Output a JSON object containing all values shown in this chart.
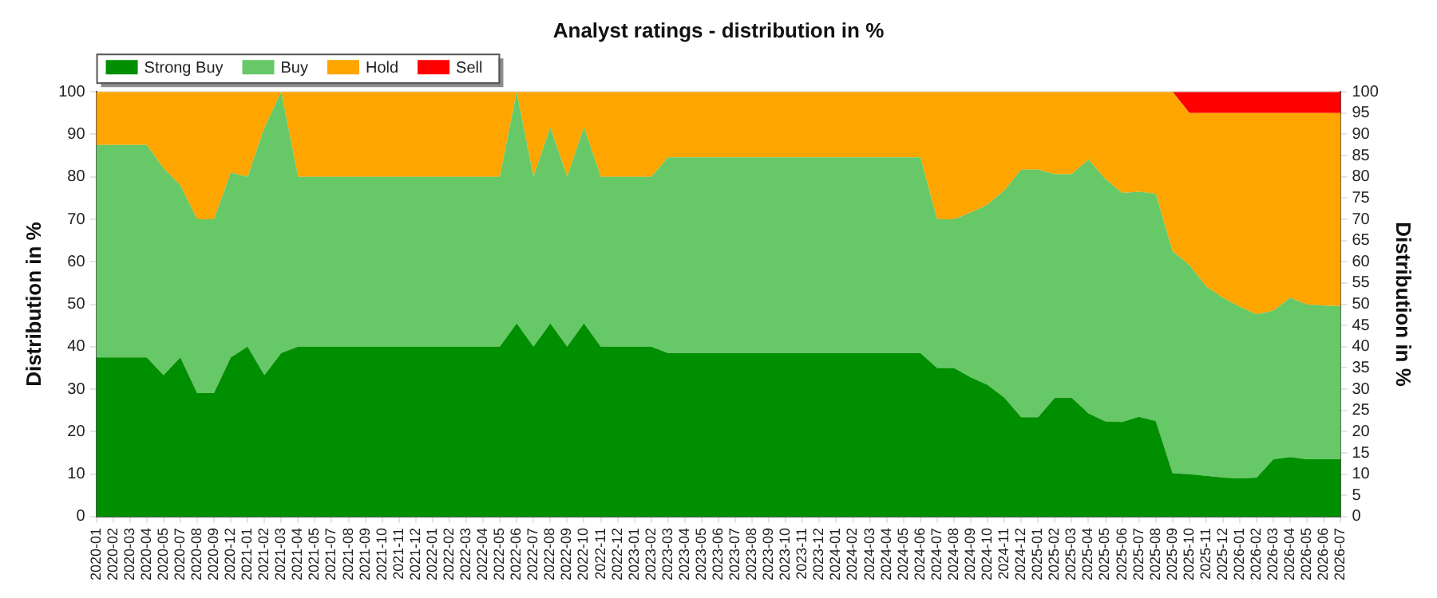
{
  "chart_data": {
    "type": "area",
    "title": "Analyst ratings - distribution in %",
    "ylabel": "Distribution in %",
    "y2label": "Distribution in %",
    "categories": [
      "2020-01",
      "2020-02",
      "2020-03",
      "2020-04",
      "2020-05",
      "2020-07",
      "2020-08",
      "2020-09",
      "2020-12",
      "2021-01",
      "2021-02",
      "2021-03",
      "2021-04",
      "2021-05",
      "2021-07",
      "2021-08",
      "2021-09",
      "2021-10",
      "2021-11",
      "2021-12",
      "2022-01",
      "2022-02",
      "2022-03",
      "2022-04",
      "2022-05",
      "2022-06",
      "2022-07",
      "2022-08",
      "2022-09",
      "2022-10",
      "2022-11",
      "2022-12",
      "2023-01",
      "2023-02",
      "2023-03",
      "2023-04",
      "2023-05",
      "2023-06",
      "2023-07",
      "2023-08",
      "2023-09",
      "2023-10",
      "2023-11",
      "2023-12",
      "2024-01",
      "2024-02",
      "2024-03",
      "2024-04",
      "2024-05",
      "2024-06",
      "2024-07",
      "2024-08",
      "2024-09",
      "2024-10",
      "2024-11",
      "2024-12",
      "2025-01",
      "2025-02",
      "2025-03",
      "2025-04",
      "2025-05",
      "2025-06",
      "2025-07",
      "2025-08",
      "2025-09",
      "2025-10",
      "2025-11",
      "2025-12",
      "2026-01",
      "2026-02",
      "2026-03",
      "2026-04",
      "2026-05",
      "2026-06",
      "2026-07"
    ],
    "stacked": true,
    "series": [
      {
        "name": "Strong Buy",
        "color": "#008f00",
        "values": [
          37.5,
          37.5,
          37.5,
          37.5,
          33.3,
          37.5,
          29.1,
          29.1,
          37.5,
          40,
          33.3,
          38.5,
          40,
          40,
          40,
          40,
          40,
          40,
          40,
          40,
          40,
          40,
          40,
          40,
          40,
          45.5,
          40,
          45.5,
          40,
          45.5,
          40,
          40,
          40,
          40,
          38.5,
          38.5,
          38.5,
          38.5,
          38.5,
          38.5,
          38.5,
          38.5,
          38.5,
          38.5,
          38.5,
          38.5,
          38.5,
          38.5,
          38.5,
          38.5,
          35,
          35,
          32.8,
          31,
          28,
          23.4,
          23.4,
          28,
          28,
          24.3,
          22.4,
          22.3,
          23.5,
          22.5,
          10.2,
          10,
          9.6,
          9.2,
          9,
          9.2,
          13.5,
          14,
          13.5,
          13.5,
          13.5
        ]
      },
      {
        "name": "Buy",
        "color": "#66c866",
        "values": [
          50,
          50,
          50,
          50,
          48.7,
          40.5,
          40.9,
          40.9,
          43.5,
          40,
          58.3,
          61.5,
          40,
          40,
          40,
          40,
          40,
          40,
          40,
          40,
          40,
          40,
          40,
          40,
          40,
          54.5,
          40,
          46.2,
          40,
          46.2,
          40,
          40,
          40,
          40,
          46.1,
          46.1,
          46.1,
          46.1,
          46.1,
          46.1,
          46.1,
          46.1,
          46.1,
          46.1,
          46.1,
          46.1,
          46.1,
          46.1,
          46.1,
          46.1,
          35,
          35,
          38.8,
          42.5,
          48.8,
          58.3,
          58.3,
          52.6,
          52.6,
          59.8,
          57.1,
          53.9,
          53,
          53.5,
          52.3,
          49.2,
          44.6,
          42.3,
          40.4,
          38.4,
          35,
          37.5,
          36.4,
          36.2,
          36.1
        ]
      },
      {
        "name": "Hold",
        "color": "#ffa500",
        "values": [
          12.5,
          12.5,
          12.5,
          12.5,
          18,
          22,
          30,
          30,
          19,
          20,
          8.4,
          0,
          20,
          20,
          20,
          20,
          20,
          20,
          20,
          20,
          20,
          20,
          20,
          20,
          20,
          0,
          20,
          8.3,
          20,
          8.3,
          20,
          20,
          20,
          20,
          15.4,
          15.4,
          15.4,
          15.4,
          15.4,
          15.4,
          15.4,
          15.4,
          15.4,
          15.4,
          15.4,
          15.4,
          15.4,
          15.4,
          15.4,
          15.4,
          30,
          30,
          28.4,
          26.5,
          23.2,
          18.3,
          18.3,
          19.4,
          19.4,
          15.9,
          20.5,
          23.8,
          23.5,
          24,
          37.5,
          35.8,
          40.8,
          43.5,
          45.6,
          47.4,
          46.5,
          43.5,
          45.1,
          45.3,
          45.4
        ]
      },
      {
        "name": "Sell",
        "color": "#ff0000",
        "values": [
          0,
          0,
          0,
          0,
          0,
          0,
          0,
          0,
          0,
          0,
          0,
          0,
          0,
          0,
          0,
          0,
          0,
          0,
          0,
          0,
          0,
          0,
          0,
          0,
          0,
          0,
          0,
          0,
          0,
          0,
          0,
          0,
          0,
          0,
          0,
          0,
          0,
          0,
          0,
          0,
          0,
          0,
          0,
          0,
          0,
          0,
          0,
          0,
          0,
          0,
          0,
          0,
          0,
          0,
          0,
          0,
          0,
          0,
          0,
          0,
          0,
          0,
          0,
          0,
          0,
          5,
          5,
          5,
          5,
          5,
          5,
          5,
          5,
          5,
          5
        ]
      }
    ],
    "ylim": [
      0,
      100
    ],
    "yticks": [
      0,
      10,
      20,
      30,
      40,
      50,
      60,
      70,
      80,
      90,
      100
    ],
    "y2lim": [
      0,
      100
    ],
    "y2ticks": [
      0,
      5,
      10,
      15,
      20,
      25,
      30,
      35,
      40,
      45,
      50,
      55,
      60,
      65,
      70,
      75,
      80,
      85,
      90,
      95,
      100
    ],
    "grid": "y",
    "legend": "top left"
  }
}
